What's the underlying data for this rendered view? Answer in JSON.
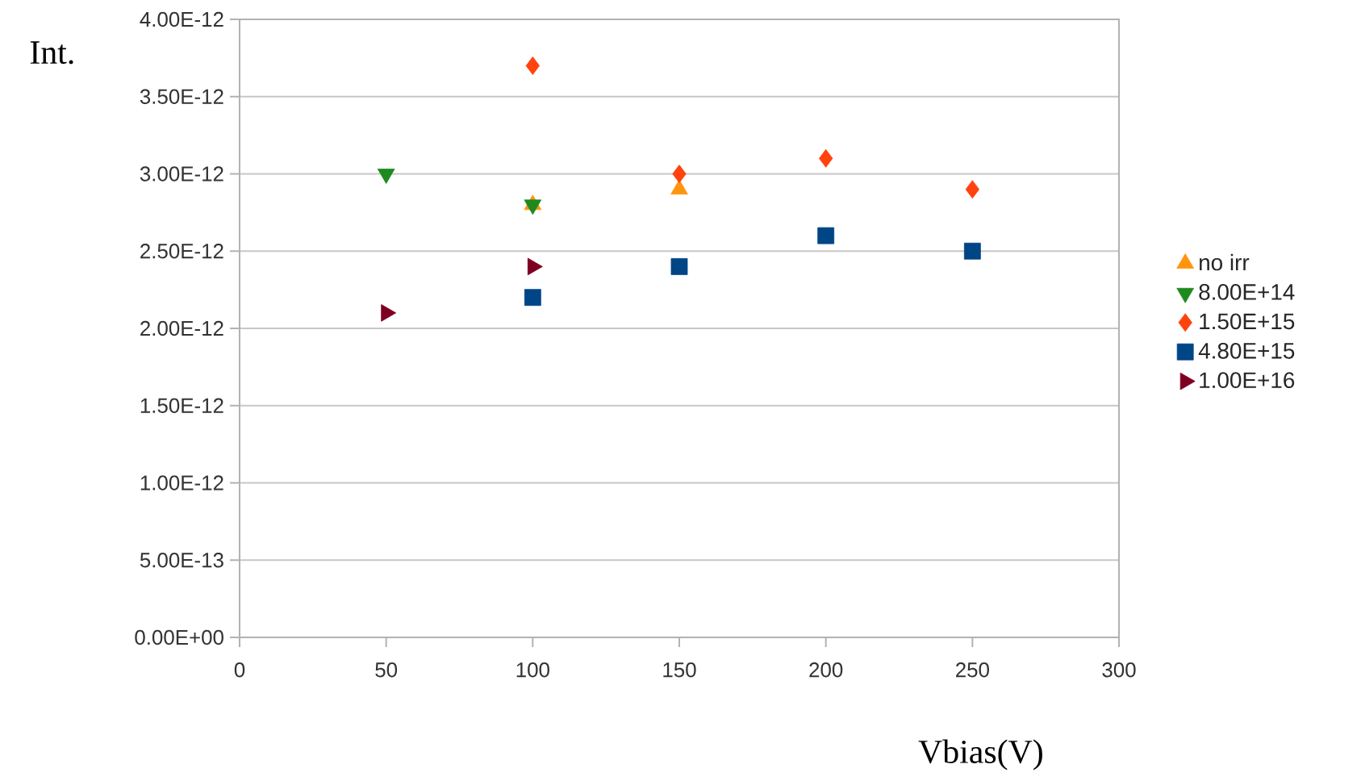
{
  "chart_data": {
    "type": "scatter",
    "xlabel": "Vbias(V)",
    "ylabel": "Int.",
    "xlim": [
      0,
      300
    ],
    "xticks": [
      0,
      50,
      100,
      150,
      200,
      250,
      300
    ],
    "ylim": [
      0,
      4e-12
    ],
    "yticks": [
      {
        "value": 0,
        "label": "0.00E+00"
      },
      {
        "value": 5e-13,
        "label": "5.00E-13"
      },
      {
        "value": 1e-12,
        "label": "1.00E-12"
      },
      {
        "value": 1.5e-12,
        "label": "1.50E-12"
      },
      {
        "value": 2e-12,
        "label": "2.00E-12"
      },
      {
        "value": 2.5e-12,
        "label": "2.50E-12"
      },
      {
        "value": 3e-12,
        "label": "3.00E-12"
      },
      {
        "value": 3.5e-12,
        "label": "3.50E-12"
      },
      {
        "value": 4e-12,
        "label": "4.00E-12"
      }
    ],
    "grid": "y",
    "legend": "right",
    "series": [
      {
        "name": "no irr",
        "color": "#ff950e",
        "marker": "triangle",
        "x": [
          100,
          150
        ],
        "values": [
          2.8e-12,
          2.9e-12
        ]
      },
      {
        "name": "8.00E+14",
        "color": "#1e8a1e",
        "marker": "triangle-down",
        "x": [
          50,
          100
        ],
        "values": [
          3e-12,
          2.8e-12
        ]
      },
      {
        "name": "1.50E+15",
        "color": "#ff420e",
        "marker": "diamond",
        "x": [
          100,
          150,
          200,
          250
        ],
        "values": [
          3.7e-12,
          3e-12,
          3.1e-12,
          2.9e-12
        ]
      },
      {
        "name": "4.80E+15",
        "color": "#004586",
        "marker": "square",
        "x": [
          100,
          150,
          200,
          250
        ],
        "values": [
          2.2e-12,
          2.4e-12,
          2.6e-12,
          2.5e-12
        ]
      },
      {
        "name": "1.00E+16",
        "color": "#7e0021",
        "marker": "triangle-right",
        "x": [
          50,
          100
        ],
        "values": [
          2.1e-12,
          2.4e-12
        ]
      }
    ]
  }
}
